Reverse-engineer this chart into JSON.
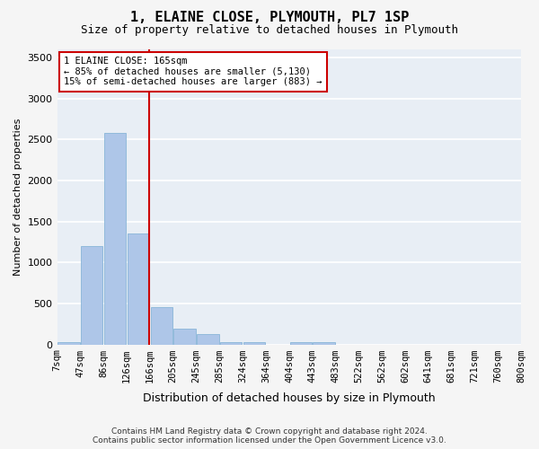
{
  "title": "1, ELAINE CLOSE, PLYMOUTH, PL7 1SP",
  "subtitle": "Size of property relative to detached houses in Plymouth",
  "xlabel": "Distribution of detached houses by size in Plymouth",
  "ylabel": "Number of detached properties",
  "bar_color": "#aec6e8",
  "bar_edge_color": "#7bafd4",
  "vline_color": "#cc0000",
  "vline_x": 165,
  "annotation_lines": [
    "1 ELAINE CLOSE: 165sqm",
    "← 85% of detached houses are smaller (5,130)",
    "15% of semi-detached houses are larger (883) →"
  ],
  "annotation_box_color": "#ffffff",
  "annotation_box_edge_color": "#cc0000",
  "bins": [
    7,
    47,
    86,
    126,
    166,
    205,
    245,
    285,
    324,
    364,
    404,
    443,
    483,
    522,
    562,
    602,
    641,
    681,
    721,
    760,
    800
  ],
  "tick_labels": [
    "7sqm",
    "47sqm",
    "86sqm",
    "126sqm",
    "166sqm",
    "205sqm",
    "245sqm",
    "285sqm",
    "324sqm",
    "364sqm",
    "404sqm",
    "443sqm",
    "483sqm",
    "522sqm",
    "562sqm",
    "602sqm",
    "641sqm",
    "681sqm",
    "721sqm",
    "760sqm",
    "800sqm"
  ],
  "bar_heights": [
    30,
    1200,
    2580,
    1350,
    450,
    190,
    130,
    30,
    30,
    0,
    30,
    30,
    0,
    0,
    0,
    0,
    0,
    0,
    0,
    0
  ],
  "ylim": [
    0,
    3600
  ],
  "yticks": [
    0,
    500,
    1000,
    1500,
    2000,
    2500,
    3000,
    3500
  ],
  "background_color": "#e8eef5",
  "fig_background_color": "#f5f5f5",
  "grid_color": "#ffffff",
  "footer_line1": "Contains HM Land Registry data © Crown copyright and database right 2024.",
  "footer_line2": "Contains public sector information licensed under the Open Government Licence v3.0."
}
